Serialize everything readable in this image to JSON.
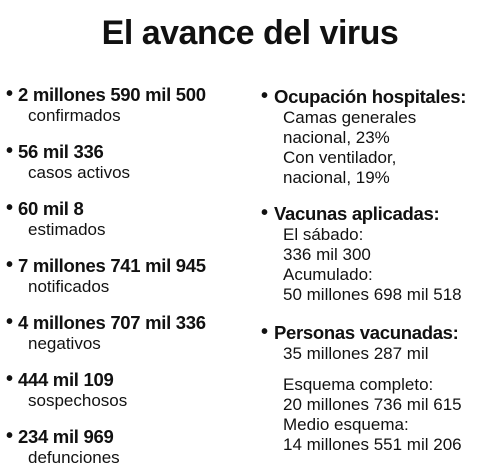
{
  "title": "El avance del virus",
  "bullet": "•",
  "left": [
    {
      "value": "2 millones 590 mil 500",
      "label": "confirmados"
    },
    {
      "value": "56 mil 336",
      "label": "casos activos"
    },
    {
      "value": "60 mil 8",
      "label": "estimados"
    },
    {
      "value": "7 millones 741 mil 945",
      "label": "notificados"
    },
    {
      "value": "4 millones 707 mil 336",
      "label": "negativos"
    },
    {
      "value": "444 mil 109",
      "label": "sospechosos"
    },
    {
      "value": "234 mil 969",
      "label": "defunciones"
    }
  ],
  "right": {
    "hospital": {
      "heading": "Ocupación hospitales:",
      "lines": [
        "Camas generales",
        "nacional, 23%",
        "Con ventilador,",
        "nacional, 19%"
      ]
    },
    "vacunas": {
      "heading": "Vacunas aplicadas:",
      "lines": [
        "El sábado:",
        "336 mil 300",
        "Acumulado:",
        "50 millones 698 mil 518"
      ]
    },
    "personas": {
      "heading": "Personas vacunadas:",
      "lines": [
        "35 millones 287 mil",
        "Esquema completo:",
        "20 millones 736 mil 615",
        "Medio esquema:",
        "14 millones 551 mil 206"
      ]
    }
  }
}
